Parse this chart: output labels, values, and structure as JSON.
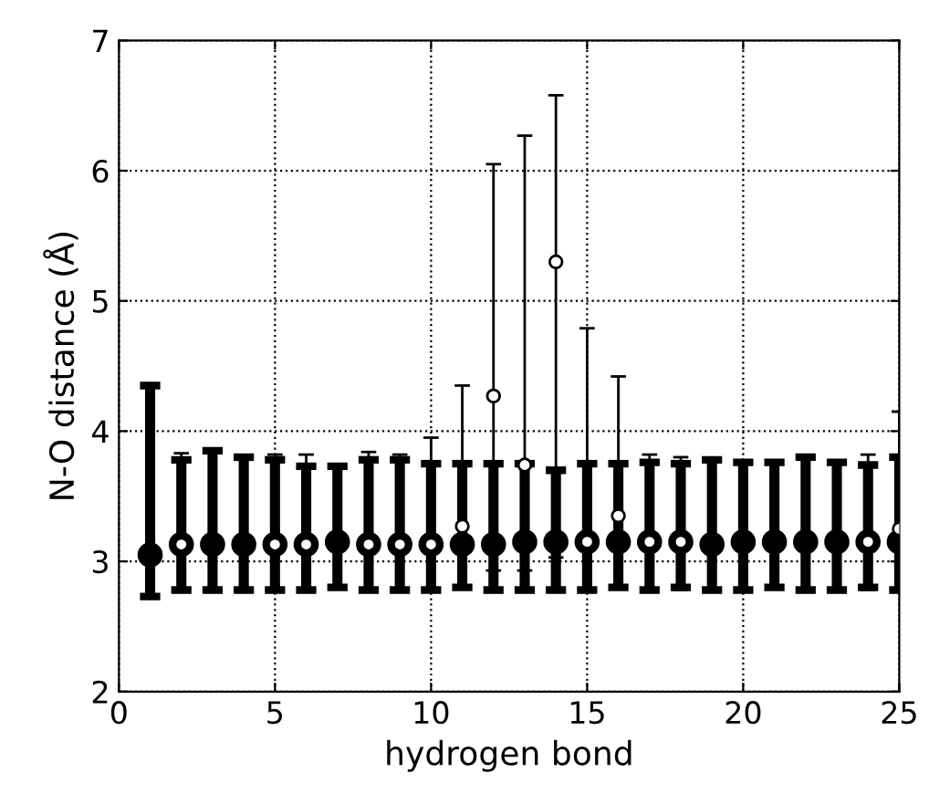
{
  "chart_data": {
    "type": "scatter",
    "xlabel": "hydrogen bond",
    "ylabel": "N-O distance (Å)",
    "xlim": [
      0,
      25
    ],
    "ylim": [
      2,
      7
    ],
    "xticks": [
      0,
      5,
      10,
      15,
      20,
      25
    ],
    "yticks": [
      2,
      3,
      4,
      5,
      6,
      7
    ],
    "grid": true,
    "marker": "circle",
    "series": [
      {
        "color": "#000000",
        "x": [
          1,
          2,
          3,
          4,
          5,
          6,
          7,
          8,
          9,
          10,
          11,
          12,
          13,
          14,
          15,
          16,
          17,
          18,
          19,
          20,
          21,
          22,
          23,
          24,
          25
        ],
        "values": [
          3.05,
          3.13,
          3.13,
          3.13,
          3.13,
          3.13,
          3.15,
          3.13,
          3.13,
          3.13,
          3.13,
          3.13,
          3.15,
          3.15,
          3.15,
          3.15,
          3.15,
          3.15,
          3.13,
          3.15,
          3.15,
          3.15,
          3.15,
          3.15,
          3.15
        ],
        "errors": [
          [
            2.73,
            4.35
          ],
          [
            2.78,
            3.78
          ],
          [
            2.78,
            3.85
          ],
          [
            2.78,
            3.8
          ],
          [
            2.78,
            3.78
          ],
          [
            2.78,
            3.73
          ],
          [
            2.8,
            3.73
          ],
          [
            2.78,
            3.78
          ],
          [
            2.78,
            3.78
          ],
          [
            2.78,
            3.75
          ],
          [
            2.8,
            3.75
          ],
          [
            2.78,
            3.75
          ],
          [
            2.78,
            3.75
          ],
          [
            2.78,
            3.7
          ],
          [
            2.78,
            3.75
          ],
          [
            2.8,
            3.75
          ],
          [
            2.78,
            3.76
          ],
          [
            2.8,
            3.75
          ],
          [
            2.78,
            3.78
          ],
          [
            2.78,
            3.76
          ],
          [
            2.8,
            3.76
          ],
          [
            2.78,
            3.8
          ],
          [
            2.78,
            3.76
          ],
          [
            2.8,
            3.74
          ],
          [
            2.78,
            3.8
          ]
        ]
      },
      {
        "color": "#000000",
        "x": [
          2,
          5,
          6,
          8,
          9,
          10,
          11,
          12,
          13,
          14,
          15,
          16,
          17,
          18,
          24,
          25
        ],
        "values": [
          3.13,
          3.13,
          3.13,
          3.13,
          3.13,
          3.13,
          3.27,
          4.27,
          3.74,
          5.3,
          3.15,
          3.35,
          3.15,
          3.15,
          3.15,
          3.25
        ],
        "errors": [
          [
            2.78,
            3.83
          ],
          [
            2.78,
            3.82
          ],
          [
            2.78,
            3.82
          ],
          [
            2.78,
            3.84
          ],
          [
            2.78,
            3.82
          ],
          [
            2.78,
            3.95
          ],
          [
            2.8,
            4.35
          ],
          [
            2.93,
            6.05
          ],
          [
            2.93,
            6.27
          ],
          [
            3.03,
            6.58
          ],
          [
            2.78,
            4.79
          ],
          [
            2.8,
            4.42
          ],
          [
            2.77,
            3.82
          ],
          [
            2.78,
            3.8
          ],
          [
            2.78,
            3.82
          ],
          [
            2.78,
            4.15
          ]
        ]
      }
    ]
  }
}
